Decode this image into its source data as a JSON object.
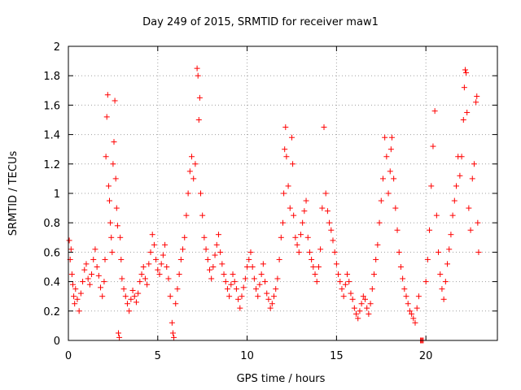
{
  "chart_data": {
    "type": "scatter",
    "title": "Day 249 of 2015, SRMTID for receiver maw1",
    "xlabel": "GPS time / hours",
    "ylabel": "SRMTID / TECUs",
    "xlim": [
      0,
      24
    ],
    "ylim": [
      0,
      2
    ],
    "xticks": [
      "0",
      "5",
      "10",
      "15",
      "20"
    ],
    "yticks": [
      "0",
      "0.2",
      "0.4",
      "0.6",
      "0.8",
      "1",
      "1.2",
      "1.4",
      "1.6",
      "1.8",
      "2"
    ],
    "grid": true,
    "marker": "+",
    "series": [
      {
        "name": "SRMTID",
        "color": "#ff0000",
        "points": [
          [
            0.05,
            0.68
          ],
          [
            0.1,
            0.55
          ],
          [
            0.15,
            0.62
          ],
          [
            0.2,
            0.45
          ],
          [
            0.25,
            0.38
          ],
          [
            0.3,
            0.3
          ],
          [
            0.35,
            0.25
          ],
          [
            0.4,
            0.35
          ],
          [
            0.5,
            0.28
          ],
          [
            0.6,
            0.2
          ],
          [
            0.7,
            0.32
          ],
          [
            0.8,
            0.4
          ],
          [
            0.9,
            0.48
          ],
          [
            1.0,
            0.52
          ],
          [
            1.1,
            0.42
          ],
          [
            1.2,
            0.38
          ],
          [
            1.3,
            0.45
          ],
          [
            1.4,
            0.55
          ],
          [
            1.5,
            0.62
          ],
          [
            1.6,
            0.5
          ],
          [
            1.7,
            0.44
          ],
          [
            1.8,
            0.36
          ],
          [
            1.9,
            0.3
          ],
          [
            2.0,
            0.4
          ],
          [
            2.05,
            0.55
          ],
          [
            2.1,
            1.25
          ],
          [
            2.15,
            1.52
          ],
          [
            2.2,
            1.67
          ],
          [
            2.25,
            1.05
          ],
          [
            2.3,
            0.95
          ],
          [
            2.35,
            0.8
          ],
          [
            2.4,
            0.7
          ],
          [
            2.45,
            0.6
          ],
          [
            2.5,
            1.2
          ],
          [
            2.55,
            1.35
          ],
          [
            2.6,
            1.63
          ],
          [
            2.65,
            1.1
          ],
          [
            2.7,
            0.9
          ],
          [
            2.75,
            0.78
          ],
          [
            2.8,
            0.05
          ],
          [
            2.85,
            0.02
          ],
          [
            2.9,
            0.7
          ],
          [
            2.95,
            0.55
          ],
          [
            3.0,
            0.42
          ],
          [
            3.1,
            0.35
          ],
          [
            3.2,
            0.3
          ],
          [
            3.3,
            0.25
          ],
          [
            3.4,
            0.2
          ],
          [
            3.5,
            0.28
          ],
          [
            3.6,
            0.34
          ],
          [
            3.7,
            0.3
          ],
          [
            3.8,
            0.26
          ],
          [
            3.9,
            0.32
          ],
          [
            4.0,
            0.4
          ],
          [
            4.1,
            0.45
          ],
          [
            4.2,
            0.5
          ],
          [
            4.3,
            0.42
          ],
          [
            4.4,
            0.38
          ],
          [
            4.5,
            0.52
          ],
          [
            4.6,
            0.6
          ],
          [
            4.7,
            0.72
          ],
          [
            4.8,
            0.65
          ],
          [
            4.9,
            0.55
          ],
          [
            5.0,
            0.48
          ],
          [
            5.1,
            0.45
          ],
          [
            5.2,
            0.52
          ],
          [
            5.3,
            0.58
          ],
          [
            5.4,
            0.65
          ],
          [
            5.5,
            0.5
          ],
          [
            5.6,
            0.42
          ],
          [
            5.7,
            0.3
          ],
          [
            5.8,
            0.12
          ],
          [
            5.85,
            0.05
          ],
          [
            5.9,
            0.02
          ],
          [
            6.0,
            0.25
          ],
          [
            6.1,
            0.35
          ],
          [
            6.2,
            0.45
          ],
          [
            6.3,
            0.55
          ],
          [
            6.4,
            0.62
          ],
          [
            6.5,
            0.7
          ],
          [
            6.6,
            0.85
          ],
          [
            6.7,
            1.0
          ],
          [
            6.8,
            1.15
          ],
          [
            6.9,
            1.25
          ],
          [
            7.0,
            1.1
          ],
          [
            7.1,
            1.2
          ],
          [
            7.2,
            1.85
          ],
          [
            7.25,
            1.8
          ],
          [
            7.3,
            1.5
          ],
          [
            7.35,
            1.65
          ],
          [
            7.4,
            1.0
          ],
          [
            7.5,
            0.85
          ],
          [
            7.6,
            0.7
          ],
          [
            7.7,
            0.62
          ],
          [
            7.8,
            0.55
          ],
          [
            7.9,
            0.48
          ],
          [
            8.0,
            0.42
          ],
          [
            8.1,
            0.5
          ],
          [
            8.2,
            0.58
          ],
          [
            8.3,
            0.65
          ],
          [
            8.4,
            0.72
          ],
          [
            8.5,
            0.6
          ],
          [
            8.6,
            0.52
          ],
          [
            8.7,
            0.45
          ],
          [
            8.8,
            0.4
          ],
          [
            8.9,
            0.35
          ],
          [
            9.0,
            0.3
          ],
          [
            9.1,
            0.38
          ],
          [
            9.2,
            0.45
          ],
          [
            9.3,
            0.4
          ],
          [
            9.4,
            0.35
          ],
          [
            9.5,
            0.28
          ],
          [
            9.6,
            0.22
          ],
          [
            9.7,
            0.3
          ],
          [
            9.8,
            0.36
          ],
          [
            9.9,
            0.42
          ],
          [
            10.0,
            0.5
          ],
          [
            10.1,
            0.55
          ],
          [
            10.2,
            0.6
          ],
          [
            10.3,
            0.5
          ],
          [
            10.4,
            0.42
          ],
          [
            10.5,
            0.35
          ],
          [
            10.6,
            0.3
          ],
          [
            10.7,
            0.38
          ],
          [
            10.8,
            0.45
          ],
          [
            10.9,
            0.52
          ],
          [
            11.0,
            0.4
          ],
          [
            11.1,
            0.32
          ],
          [
            11.2,
            0.28
          ],
          [
            11.3,
            0.22
          ],
          [
            11.4,
            0.25
          ],
          [
            11.5,
            0.3
          ],
          [
            11.6,
            0.35
          ],
          [
            11.7,
            0.42
          ],
          [
            11.8,
            0.55
          ],
          [
            11.9,
            0.7
          ],
          [
            12.0,
            0.8
          ],
          [
            12.05,
            1.0
          ],
          [
            12.1,
            1.3
          ],
          [
            12.15,
            1.45
          ],
          [
            12.2,
            1.25
          ],
          [
            12.3,
            1.05
          ],
          [
            12.4,
            0.9
          ],
          [
            12.5,
            1.38
          ],
          [
            12.55,
            1.2
          ],
          [
            12.6,
            0.85
          ],
          [
            12.7,
            0.7
          ],
          [
            12.8,
            0.65
          ],
          [
            12.9,
            0.6
          ],
          [
            13.0,
            0.72
          ],
          [
            13.1,
            0.8
          ],
          [
            13.2,
            0.88
          ],
          [
            13.3,
            0.95
          ],
          [
            13.4,
            0.7
          ],
          [
            13.5,
            0.6
          ],
          [
            13.6,
            0.55
          ],
          [
            13.7,
            0.5
          ],
          [
            13.8,
            0.45
          ],
          [
            13.9,
            0.4
          ],
          [
            14.0,
            0.5
          ],
          [
            14.1,
            0.62
          ],
          [
            14.2,
            0.9
          ],
          [
            14.3,
            1.45
          ],
          [
            14.4,
            1.0
          ],
          [
            14.5,
            0.88
          ],
          [
            14.6,
            0.8
          ],
          [
            14.7,
            0.75
          ],
          [
            14.8,
            0.68
          ],
          [
            14.9,
            0.6
          ],
          [
            15.0,
            0.52
          ],
          [
            15.1,
            0.45
          ],
          [
            15.2,
            0.4
          ],
          [
            15.3,
            0.35
          ],
          [
            15.4,
            0.3
          ],
          [
            15.5,
            0.38
          ],
          [
            15.6,
            0.45
          ],
          [
            15.7,
            0.4
          ],
          [
            15.8,
            0.32
          ],
          [
            15.9,
            0.28
          ],
          [
            16.0,
            0.22
          ],
          [
            16.1,
            0.18
          ],
          [
            16.2,
            0.15
          ],
          [
            16.3,
            0.2
          ],
          [
            16.4,
            0.25
          ],
          [
            16.5,
            0.3
          ],
          [
            16.6,
            0.28
          ],
          [
            16.7,
            0.22
          ],
          [
            16.8,
            0.18
          ],
          [
            16.9,
            0.25
          ],
          [
            17.0,
            0.35
          ],
          [
            17.1,
            0.45
          ],
          [
            17.2,
            0.55
          ],
          [
            17.3,
            0.65
          ],
          [
            17.4,
            0.8
          ],
          [
            17.5,
            0.95
          ],
          [
            17.6,
            1.1
          ],
          [
            17.7,
            1.38
          ],
          [
            17.8,
            1.25
          ],
          [
            17.9,
            1.0
          ],
          [
            18.0,
            1.15
          ],
          [
            18.05,
            1.3
          ],
          [
            18.1,
            1.38
          ],
          [
            18.2,
            1.1
          ],
          [
            18.3,
            0.9
          ],
          [
            18.4,
            0.75
          ],
          [
            18.5,
            0.6
          ],
          [
            18.6,
            0.5
          ],
          [
            18.7,
            0.42
          ],
          [
            18.8,
            0.35
          ],
          [
            18.9,
            0.3
          ],
          [
            19.0,
            0.25
          ],
          [
            19.1,
            0.2
          ],
          [
            19.2,
            0.18
          ],
          [
            19.3,
            0.15
          ],
          [
            19.4,
            0.12
          ],
          [
            19.5,
            0.22
          ],
          [
            19.6,
            0.3
          ],
          [
            19.7,
            0.0
          ],
          [
            19.75,
            0.0
          ],
          [
            19.8,
            0.0
          ],
          [
            19.85,
            0.0
          ],
          [
            20.0,
            0.4
          ],
          [
            20.1,
            0.55
          ],
          [
            20.2,
            0.75
          ],
          [
            20.3,
            1.05
          ],
          [
            20.4,
            1.32
          ],
          [
            20.5,
            1.56
          ],
          [
            20.6,
            0.85
          ],
          [
            20.7,
            0.6
          ],
          [
            20.8,
            0.45
          ],
          [
            20.9,
            0.35
          ],
          [
            21.0,
            0.28
          ],
          [
            21.1,
            0.4
          ],
          [
            21.2,
            0.52
          ],
          [
            21.3,
            0.62
          ],
          [
            21.4,
            0.72
          ],
          [
            21.5,
            0.85
          ],
          [
            21.6,
            0.95
          ],
          [
            21.7,
            1.05
          ],
          [
            21.8,
            1.25
          ],
          [
            21.9,
            1.12
          ],
          [
            22.0,
            1.25
          ],
          [
            22.1,
            1.5
          ],
          [
            22.15,
            1.72
          ],
          [
            22.2,
            1.84
          ],
          [
            22.25,
            1.82
          ],
          [
            22.3,
            1.55
          ],
          [
            22.4,
            0.9
          ],
          [
            22.5,
            0.75
          ],
          [
            22.6,
            1.1
          ],
          [
            22.7,
            1.2
          ],
          [
            22.8,
            1.62
          ],
          [
            22.85,
            1.66
          ],
          [
            22.9,
            0.8
          ],
          [
            22.95,
            0.6
          ]
        ]
      }
    ]
  }
}
